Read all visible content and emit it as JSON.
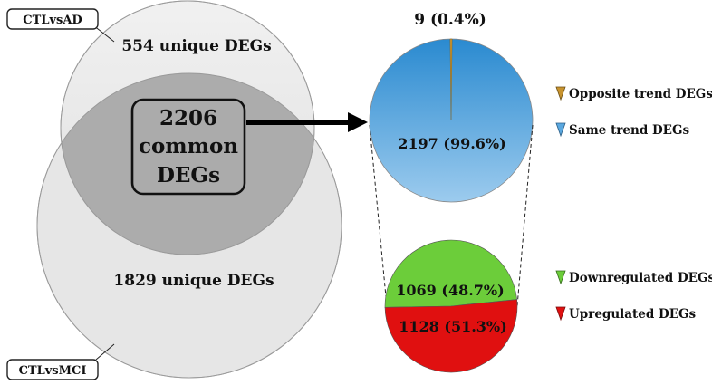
{
  "venn": {
    "set_a": {
      "label": "CTLvsAD",
      "unique_text": "554 unique DEGs"
    },
    "set_b": {
      "label": "CTLvsMCI",
      "unique_text": "1829 unique DEGs"
    },
    "common": {
      "line1": "2206",
      "line2": "common",
      "line3": "DEGs"
    }
  },
  "trend_pie": {
    "top_label": "9 (0.4%)",
    "main_label": "2197 (99.6%)",
    "slices": [
      {
        "name": "Opposite trend DEGs",
        "value": 9,
        "percent": 0.4,
        "color": "#c8932e"
      },
      {
        "name": "Same trend DEGs",
        "value": 2197,
        "percent": 99.6,
        "color": "#3f97d4"
      }
    ]
  },
  "regulation_pie": {
    "slices": [
      {
        "name": "Downregulated DEGs",
        "value": 1069,
        "percent": 48.7,
        "label": "1069 (48.7%)",
        "color": "#6ccd3a"
      },
      {
        "name": "Upregulated DEGs",
        "value": 1128,
        "percent": 51.3,
        "label": "1128 (51.3%)",
        "color": "#e01010"
      }
    ]
  },
  "legend": [
    {
      "label": "Opposite trend DEGs",
      "icon": "brown-triangle-icon",
      "color": "#c8932e"
    },
    {
      "label": "Same trend DEGs",
      "icon": "blue-triangle-icon",
      "color": "#5aa8e0"
    },
    {
      "label": "Downregulated DEGs",
      "icon": "green-triangle-icon",
      "color": "#6ccd3a"
    },
    {
      "label": "Upregulated DEGs",
      "icon": "red-triangle-icon",
      "color": "#e01010"
    }
  ]
}
